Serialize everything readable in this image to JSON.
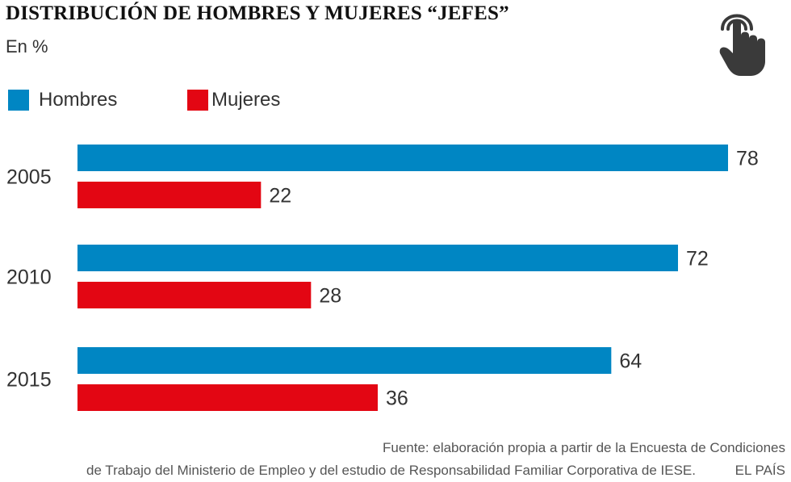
{
  "title": "DISTRIBUCIÓN DE HOMBRES  Y MUJERES “JEFES”",
  "subtitle": "En %",
  "source_line1": "Fuente: elaboración propia a partir de la Encuesta de Condiciones",
  "source_line2": "de Trabajo del Ministerio de Empleo y del estudio de Responsabilidad Familiar Corporativa de IESE.",
  "brand": "EL PAÍS",
  "icon": "pointing-hand-icon",
  "chart_data": {
    "type": "bar",
    "orientation": "horizontal",
    "categories": [
      "2005",
      "2010",
      "2015"
    ],
    "series": [
      {
        "name": "Hombres",
        "color": "#0086c3",
        "values": [
          78,
          72,
          64
        ]
      },
      {
        "name": "Mujeres",
        "color": "#e30613",
        "values": [
          22,
          28,
          36
        ]
      }
    ],
    "unit": "%",
    "xlim": [
      0,
      78
    ],
    "legend": "top-left",
    "grid": false
  }
}
